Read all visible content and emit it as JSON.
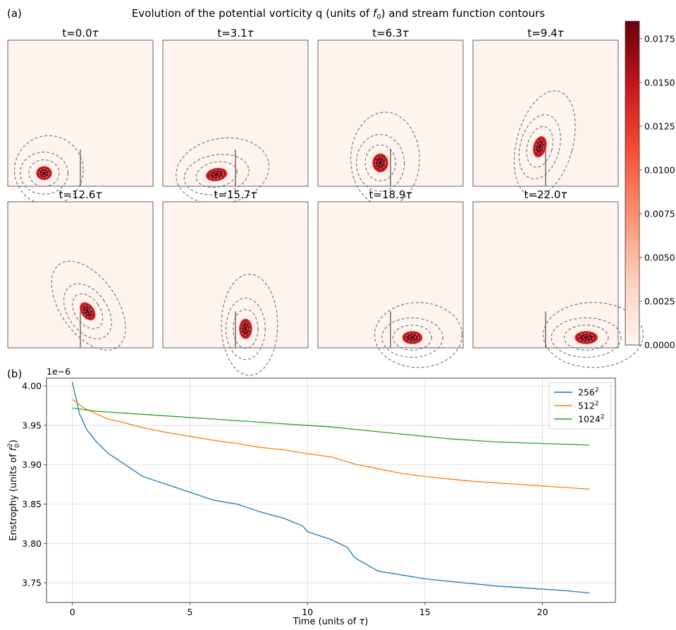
{
  "figure": {
    "panel_a_label": "(a)",
    "panel_b_label": "(b)",
    "title_prefix": "Evolution of the potential vorticity q (units of ",
    "title_sym": "f",
    "title_sub": "0",
    "title_suffix": ") and stream function contours"
  },
  "colors": {
    "background": "#fef3ee",
    "vortex_core": "#67000d",
    "vortex_mid": "#b7131b",
    "vortex_edge": "#f14432",
    "contour": "#6f6f6f",
    "wall": "#777777",
    "series_256": "#1f77b4",
    "series_512": "#ff7f0e",
    "series_1024": "#2ca02c",
    "grid": "#d9d9d9"
  },
  "chart_data": [
    {
      "type": "heatmap",
      "colormap": "Reds",
      "colorbar": {
        "range": [
          0.0,
          0.0185
        ],
        "ticks": [
          "0.0000",
          "0.0025",
          "0.0050",
          "0.0075",
          "0.0100",
          "0.0125",
          "0.0150",
          "0.0175"
        ]
      },
      "wall": {
        "x": 0.5,
        "height": 0.25
      },
      "snapshots": [
        {
          "time": "0.0",
          "vortex": {
            "x": 0.25,
            "y": 0.09,
            "rx": 0.055,
            "ry": 0.048,
            "angle": 0
          }
        },
        {
          "time": "3.1",
          "vortex": {
            "x": 0.37,
            "y": 0.08,
            "rx": 0.075,
            "ry": 0.045,
            "angle": -10
          }
        },
        {
          "time": "6.3",
          "vortex": {
            "x": 0.43,
            "y": 0.16,
            "rx": 0.055,
            "ry": 0.065,
            "angle": 0
          }
        },
        {
          "time": "9.4",
          "vortex": {
            "x": 0.46,
            "y": 0.27,
            "rx": 0.045,
            "ry": 0.075,
            "angle": 15
          }
        },
        {
          "time": "12.6",
          "vortex": {
            "x": 0.55,
            "y": 0.25,
            "rx": 0.045,
            "ry": 0.07,
            "angle": -35
          }
        },
        {
          "time": "15.7",
          "vortex": {
            "x": 0.57,
            "y": 0.13,
            "rx": 0.045,
            "ry": 0.07,
            "angle": 0
          }
        },
        {
          "time": "18.9",
          "vortex": {
            "x": 0.65,
            "y": 0.07,
            "rx": 0.07,
            "ry": 0.045,
            "angle": 0
          }
        },
        {
          "time": "22.0",
          "vortex": {
            "x": 0.78,
            "y": 0.07,
            "rx": 0.08,
            "ry": 0.045,
            "angle": 0
          }
        }
      ]
    },
    {
      "type": "line",
      "xlabel": "Time (units of τ)",
      "ylabel": "Enstrophy (units of f0²)",
      "offset_text": "1e−6",
      "xlim": [
        -1.1,
        23.1
      ],
      "ylim": [
        3.725,
        4.01
      ],
      "xticks": [
        0,
        5,
        10,
        15,
        20
      ],
      "yticks": [
        "3.75",
        "3.80",
        "3.85",
        "3.90",
        "3.95",
        "4.00"
      ],
      "grid": true,
      "legend_position": "top-right",
      "series": [
        {
          "name": "256",
          "name_sup": "2",
          "x": [
            0,
            0.3,
            0.6,
            1,
            1.5,
            2,
            3,
            4,
            5,
            6,
            7,
            8,
            9,
            9.8,
            10,
            11,
            11.7,
            12,
            13,
            14,
            15,
            16,
            17,
            18,
            19,
            20,
            21,
            22
          ],
          "y": [
            4.005,
            3.965,
            3.945,
            3.93,
            3.915,
            3.905,
            3.885,
            3.875,
            3.865,
            3.855,
            3.85,
            3.84,
            3.832,
            3.822,
            3.815,
            3.805,
            3.795,
            3.782,
            3.765,
            3.76,
            3.755,
            3.752,
            3.749,
            3.746,
            3.744,
            3.742,
            3.74,
            3.737
          ]
        },
        {
          "name": "512",
          "name_sup": "2",
          "x": [
            0,
            0.5,
            1,
            1.5,
            2,
            3,
            4,
            5,
            6,
            7,
            8,
            9,
            10,
            11,
            12,
            13,
            14,
            15,
            16,
            17,
            18,
            19,
            20,
            21,
            22
          ],
          "y": [
            3.983,
            3.972,
            3.965,
            3.958,
            3.955,
            3.947,
            3.941,
            3.936,
            3.931,
            3.927,
            3.922,
            3.919,
            3.914,
            3.91,
            3.901,
            3.895,
            3.889,
            3.885,
            3.882,
            3.879,
            3.877,
            3.875,
            3.873,
            3.871,
            3.869
          ]
        },
        {
          "name": "1024",
          "name_sup": "2",
          "x": [
            0,
            1,
            2,
            3,
            4,
            5,
            6,
            7,
            8,
            9,
            10,
            11,
            12,
            13,
            14,
            15,
            16,
            17,
            18,
            19,
            20,
            21,
            22
          ],
          "y": [
            3.972,
            3.968,
            3.966,
            3.964,
            3.962,
            3.96,
            3.958,
            3.956,
            3.954,
            3.952,
            3.95,
            3.948,
            3.945,
            3.942,
            3.939,
            3.936,
            3.933,
            3.931,
            3.929,
            3.928,
            3.927,
            3.926,
            3.925
          ]
        }
      ]
    }
  ]
}
